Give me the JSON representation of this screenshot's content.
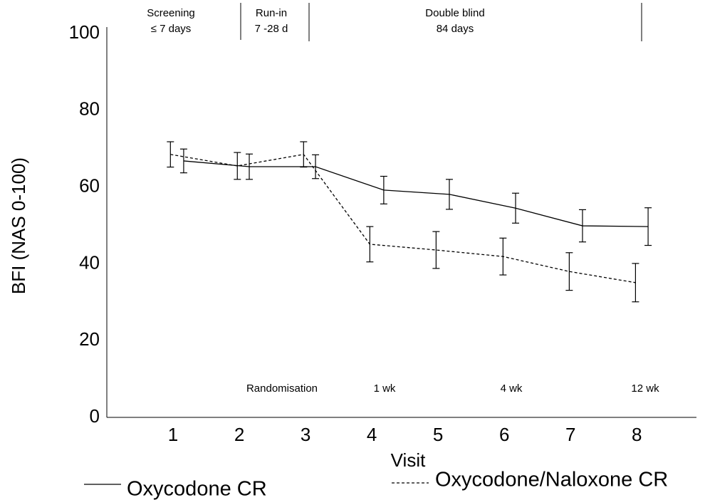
{
  "chart_data": {
    "type": "line",
    "x_label": "Visit",
    "y_label": "BFI (NAS 0-100)",
    "xlim": [
      0,
      8.9
    ],
    "ylim": [
      0,
      100
    ],
    "xticks": [
      1,
      2,
      3,
      4,
      5,
      6,
      7,
      8
    ],
    "yticks": [
      0,
      20,
      40,
      60,
      80,
      100
    ],
    "legend": "bottom",
    "series": [
      {
        "name": "Oxycodone CR",
        "color": "#000000",
        "line_style": "solid",
        "x": [
          1.16,
          2.15,
          3.15,
          4.18,
          5.17,
          6.17,
          7.18,
          8.17
        ],
        "values": [
          66.8,
          65.3,
          65.3,
          59.2,
          58.1,
          54.5,
          49.9,
          49.7
        ],
        "errors": [
          3.1,
          3.3,
          3.1,
          3.6,
          3.9,
          3.9,
          4.2,
          4.9
        ]
      },
      {
        "name": "Oxycodone/Naloxone CR",
        "color": "#000000",
        "line_style": "dashed",
        "x": [
          0.96,
          1.97,
          2.97,
          3.97,
          4.97,
          5.98,
          6.98,
          7.98
        ],
        "values": [
          68.5,
          65.5,
          68.5,
          45.1,
          43.6,
          41.9,
          38.0,
          35.1
        ],
        "errors": [
          3.3,
          3.5,
          3.3,
          4.6,
          4.8,
          4.8,
          4.9,
          5.0
        ]
      }
    ],
    "annotations": {
      "phases": [
        [
          "Screening",
          "≤ 7 days"
        ],
        [
          "Run-in",
          "7 -28 d"
        ],
        [
          "Double blind",
          "84 days"
        ]
      ],
      "milestones": [
        "Randomisation",
        "1 wk",
        "4 wk",
        "12 wk"
      ]
    }
  }
}
